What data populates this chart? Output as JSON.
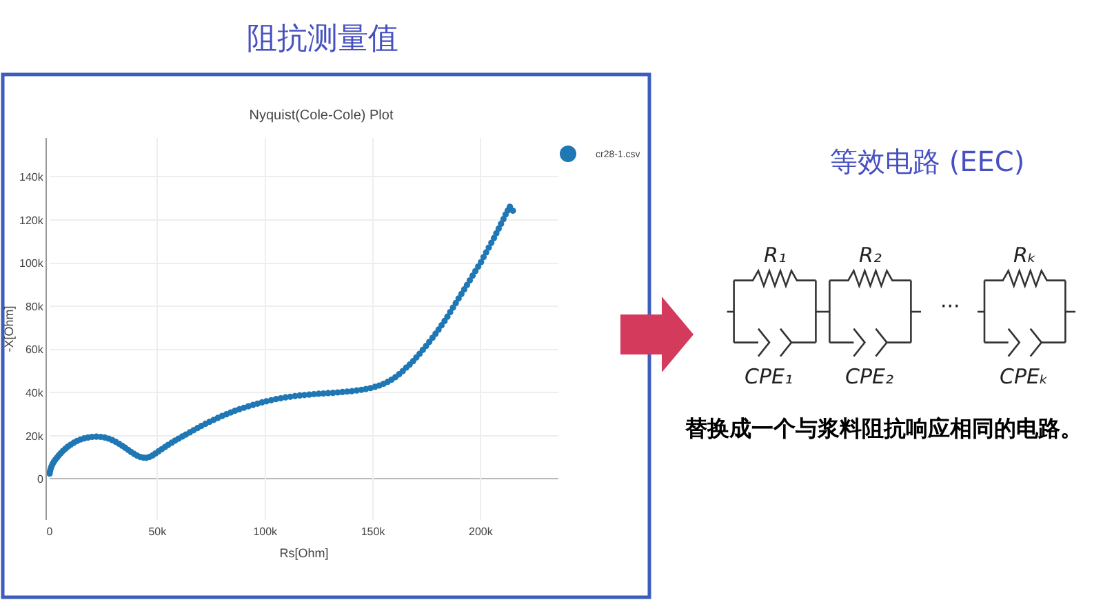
{
  "chart_data": {
    "type": "scatter",
    "title": "Nyquist(Cole-Cole) Plot",
    "xlabel": "Rs[Ohm]",
    "ylabel": "-X[Ohm]",
    "annotations": [
      "阻抗测量值",
      "等效电路 (EEC)",
      "R₁",
      "R₂",
      "Rₖ",
      "CPE₁",
      "CPE₂",
      "CPEₖ",
      "···",
      "替换成一个与浆料阻抗响应相同的电路。"
    ],
    "series": [
      {
        "name": "cr28-1.csv",
        "color": "#1f77b4",
        "x": [
          0,
          200,
          500,
          900,
          1400,
          2000,
          2700,
          3500,
          4300,
          5200,
          6200,
          7300,
          8500,
          9800,
          11200,
          12700,
          14300,
          16000,
          17800,
          19700,
          21700,
          23700,
          25600,
          27400,
          29100,
          30700,
          32200,
          33600,
          35000,
          36400,
          37800,
          39200,
          40600,
          42000,
          43500,
          44900,
          46300,
          47700,
          49100,
          50500,
          52000,
          53500,
          55000,
          56600,
          58200,
          59800,
          61500,
          63200,
          65000,
          66800,
          68600,
          70400,
          72300,
          74200,
          76100,
          78000,
          80000,
          82000,
          84000,
          86000,
          88000,
          90100,
          92200,
          94300,
          96400,
          98500,
          100600,
          102800,
          105000,
          107200,
          109400,
          111600,
          113800,
          116000,
          118200,
          120400,
          122600,
          124800,
          127000,
          129200,
          131400,
          133600,
          135800,
          138000,
          140200,
          142400,
          144600,
          146700,
          148800,
          150900,
          152900,
          154900,
          156800,
          158600,
          160400,
          162100,
          163800,
          165400,
          167000,
          168600,
          170100,
          171600,
          173100,
          174600,
          176100,
          177600,
          179000,
          180400,
          181800,
          183200,
          184500,
          185800,
          187100,
          188400,
          189700,
          191000,
          192300,
          193600,
          194900,
          196200,
          197500,
          198800,
          200100,
          201300,
          202500,
          203700,
          204900,
          206100,
          207200,
          208300,
          209400,
          210500,
          211500,
          212500,
          213500,
          214900
        ],
        "values": [
          2500,
          3700,
          4800,
          5900,
          7000,
          8000,
          9000,
          10000,
          11000,
          12000,
          13000,
          14000,
          15000,
          15900,
          16800,
          17600,
          18300,
          18800,
          19200,
          19500,
          19600,
          19500,
          19200,
          18700,
          18000,
          17200,
          16300,
          15400,
          14500,
          13500,
          12500,
          11600,
          10800,
          10200,
          9900,
          9800,
          10200,
          10900,
          11800,
          12800,
          13800,
          14800,
          15800,
          16800,
          17800,
          18700,
          19700,
          20600,
          21600,
          22600,
          23600,
          24600,
          25600,
          26500,
          27400,
          28300,
          29200,
          30000,
          30800,
          31600,
          32300,
          33000,
          33700,
          34300,
          34900,
          35500,
          36000,
          36500,
          37000,
          37400,
          37800,
          38100,
          38400,
          38700,
          38900,
          39100,
          39300,
          39500,
          39600,
          39800,
          39900,
          40100,
          40300,
          40500,
          40700,
          41000,
          41300,
          41700,
          42100,
          42700,
          43300,
          44100,
          45000,
          46000,
          47200,
          48500,
          50000,
          51600,
          53000,
          54600,
          56300,
          58000,
          59800,
          61600,
          63500,
          65400,
          67300,
          69200,
          71200,
          73200,
          75200,
          77300,
          79400,
          81500,
          83600,
          85700,
          87800,
          89900,
          92000,
          94200,
          96300,
          98400,
          100500,
          102800,
          105000,
          107200,
          109400,
          111600,
          113800,
          116000,
          118200,
          120400,
          122500,
          124400,
          126100,
          124300
        ]
      }
    ],
    "xlim": [
      0,
      236000
    ],
    "ylim": [
      -19000,
      158000
    ],
    "xticks": [
      0,
      {
        "value": 50000,
        "label": "50k"
      },
      {
        "value": 100000,
        "label": "100k"
      },
      {
        "value": 150000,
        "label": "150k"
      },
      {
        "value": 200000,
        "label": "200k"
      }
    ],
    "yticks": [
      0,
      {
        "value": 20000,
        "label": "20k"
      },
      {
        "value": 40000,
        "label": "40k"
      },
      {
        "value": 60000,
        "label": "60k"
      },
      {
        "value": 80000,
        "label": "80k"
      },
      {
        "value": 100000,
        "label": "100k"
      },
      {
        "value": 120000,
        "label": "120k"
      },
      {
        "value": 140000,
        "label": "140k"
      }
    ],
    "grid": true,
    "legend": "top right",
    "marker": "circle",
    "ref_lines": [
      {
        "axis": "y",
        "value": 0,
        "color": "#444444"
      }
    ]
  }
}
